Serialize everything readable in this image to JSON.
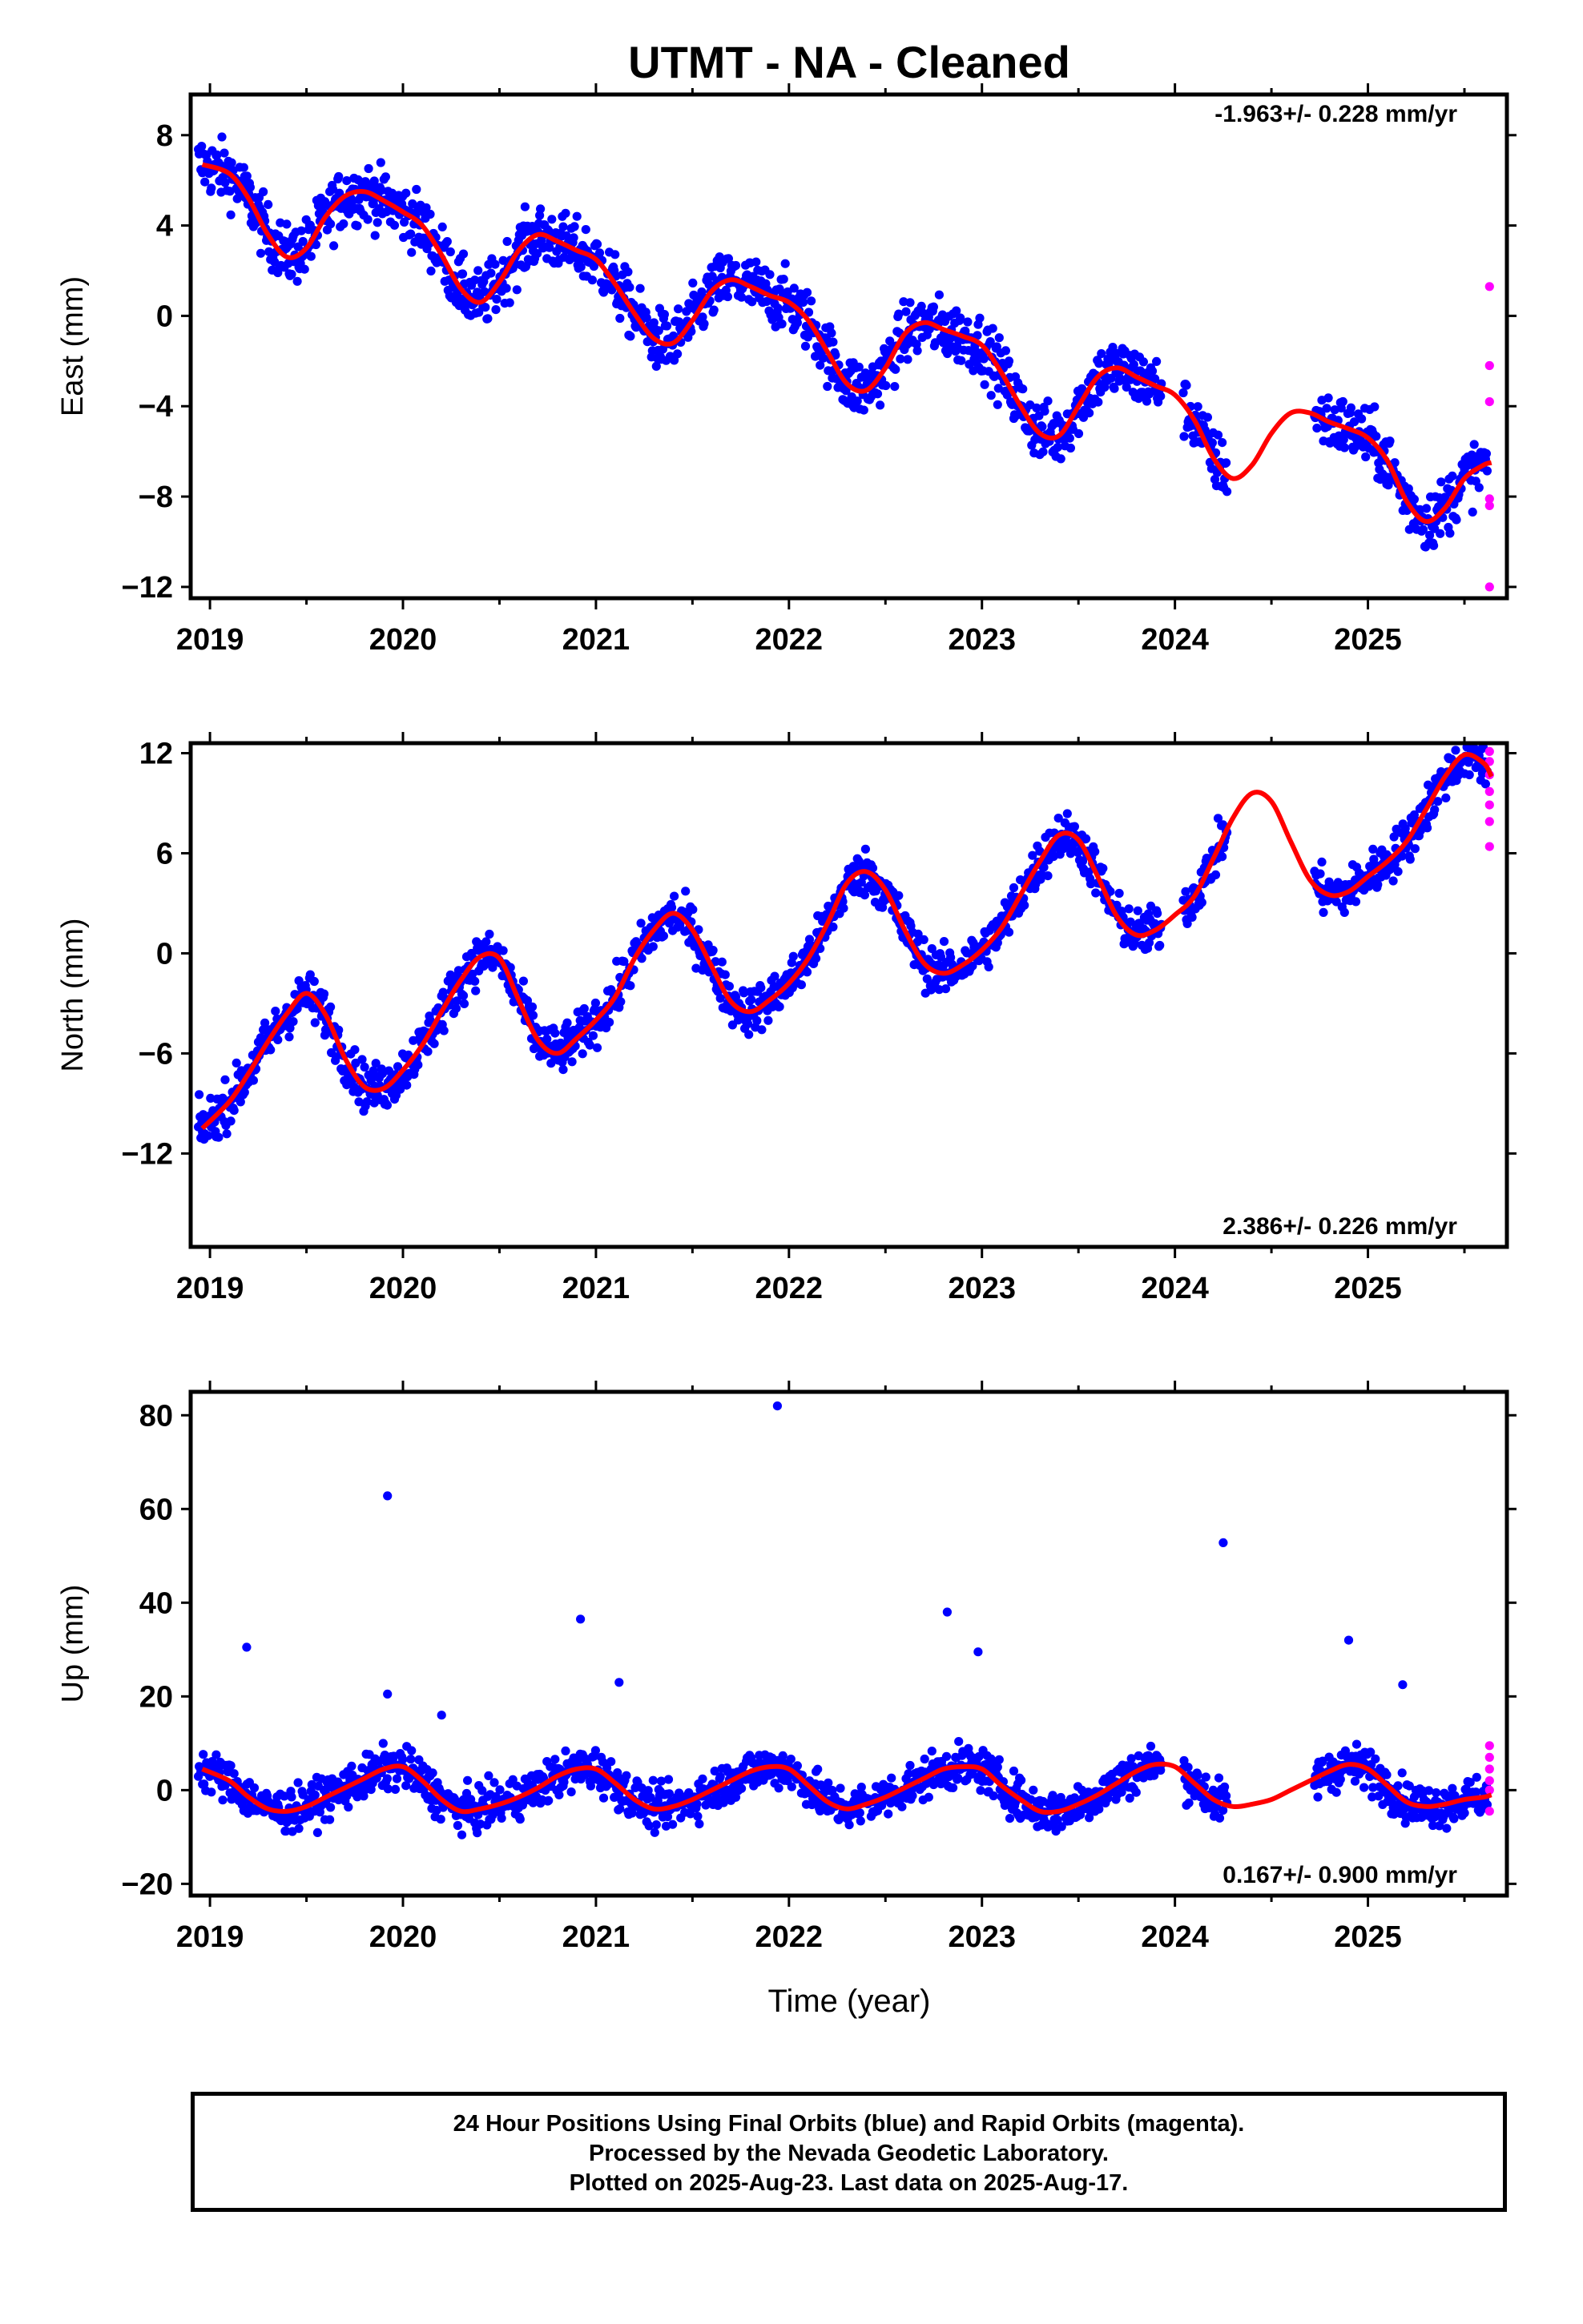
{
  "chart_data": {
    "type": "scatter",
    "title": "UTMT  - NA - Cleaned",
    "xlabel": "Time (year)",
    "x_ticks": [
      "2019",
      "2020",
      "2021",
      "2022",
      "2023",
      "2024",
      "2025"
    ],
    "xlim": [
      2018.9,
      2025.72
    ],
    "colors": {
      "final": "#0000ff",
      "rapid": "#ff00ff",
      "model": "#ff0000"
    },
    "panels": [
      {
        "name": "east",
        "ylabel": "East (mm)",
        "ylim": [
          -12.5,
          9.8
        ],
        "y_ticks": [
          "8",
          "4",
          "0",
          "−4",
          "−8",
          "−12"
        ],
        "y_tick_values": [
          8,
          4,
          0,
          -4,
          -8,
          -12
        ],
        "rate_label": "-1.963+/- 0.228 mm/yr",
        "rate_position": "top-right",
        "model_curve": {
          "x": [
            2018.96,
            2019.1,
            2019.2,
            2019.3,
            2019.4,
            2019.5,
            2019.6,
            2019.7,
            2019.8,
            2019.9,
            2020.0,
            2020.1,
            2020.2,
            2020.3,
            2020.4,
            2020.5,
            2020.6,
            2020.7,
            2020.8,
            2020.9,
            2021.0,
            2021.1,
            2021.2,
            2021.3,
            2021.4,
            2021.5,
            2021.6,
            2021.7,
            2021.8,
            2021.9,
            2022.0,
            2022.1,
            2022.2,
            2022.3,
            2022.4,
            2022.5,
            2022.6,
            2022.7,
            2022.8,
            2022.9,
            2023.0,
            2023.1,
            2023.2,
            2023.3,
            2023.4,
            2023.5,
            2023.6,
            2023.7,
            2023.8,
            2023.9,
            2024.0,
            2024.1,
            2024.2,
            2024.3,
            2024.4,
            2024.5,
            2024.6,
            2024.7,
            2024.8,
            2024.9,
            2025.0,
            2025.1,
            2025.2,
            2025.3,
            2025.4,
            2025.5,
            2025.6,
            2025.64
          ],
          "y": [
            6.7,
            6.3,
            5.2,
            3.6,
            2.6,
            3.0,
            4.4,
            5.3,
            5.5,
            5.1,
            4.6,
            4.0,
            2.7,
            1.2,
            0.6,
            1.5,
            2.9,
            3.6,
            3.3,
            2.9,
            2.5,
            1.4,
            0.1,
            -1.0,
            -1.2,
            -0.2,
            1.1,
            1.6,
            1.3,
            0.9,
            0.6,
            -0.2,
            -1.6,
            -3.0,
            -3.3,
            -2.3,
            -0.8,
            -0.3,
            -0.6,
            -0.9,
            -1.3,
            -2.5,
            -4.0,
            -5.2,
            -5.3,
            -4.0,
            -2.7,
            -2.3,
            -2.7,
            -3.1,
            -3.5,
            -4.6,
            -6.3,
            -7.2,
            -6.6,
            -5.2,
            -4.3,
            -4.3,
            -4.7,
            -5.0,
            -5.4,
            -6.4,
            -8.2,
            -9.1,
            -8.5,
            -7.2,
            -6.6,
            -6.5
          ]
        },
        "rapid_points": {
          "x": [
            2025.63,
            2025.63,
            2025.63,
            2025.63,
            2025.63,
            2025.63
          ],
          "y": [
            1.3,
            -2.2,
            -3.8,
            -8.1,
            -8.4,
            -12.0
          ]
        }
      },
      {
        "name": "north",
        "ylabel": "North (mm)",
        "ylim": [
          -17.6,
          12.6
        ],
        "y_ticks": [
          "12",
          "6",
          "0",
          "−6",
          "−12"
        ],
        "y_tick_values": [
          12,
          6,
          0,
          -6,
          -12
        ],
        "rate_label": "2.386+/- 0.226 mm/yr",
        "rate_position": "bottom-right",
        "model_curve": {
          "x": [
            2018.96,
            2019.1,
            2019.2,
            2019.3,
            2019.4,
            2019.5,
            2019.6,
            2019.7,
            2019.8,
            2019.9,
            2020.0,
            2020.1,
            2020.2,
            2020.3,
            2020.4,
            2020.5,
            2020.6,
            2020.7,
            2020.8,
            2020.9,
            2021.0,
            2021.1,
            2021.2,
            2021.3,
            2021.4,
            2021.5,
            2021.6,
            2021.7,
            2021.8,
            2021.9,
            2022.0,
            2022.1,
            2022.2,
            2022.3,
            2022.4,
            2022.5,
            2022.6,
            2022.7,
            2022.8,
            2022.9,
            2023.0,
            2023.1,
            2023.2,
            2023.3,
            2023.4,
            2023.5,
            2023.6,
            2023.7,
            2023.8,
            2023.9,
            2024.0,
            2024.1,
            2024.2,
            2024.3,
            2024.4,
            2024.5,
            2024.6,
            2024.7,
            2024.8,
            2024.9,
            2025.0,
            2025.1,
            2025.2,
            2025.3,
            2025.4,
            2025.5,
            2025.6,
            2025.64
          ],
          "y": [
            -10.5,
            -8.9,
            -7.2,
            -5.3,
            -3.6,
            -2.4,
            -3.7,
            -6.3,
            -8.0,
            -8.1,
            -7.0,
            -5.5,
            -3.5,
            -1.6,
            -0.2,
            -0.3,
            -2.8,
            -5.2,
            -6.0,
            -5.1,
            -4.0,
            -2.6,
            -0.3,
            1.4,
            2.4,
            1.4,
            -0.8,
            -2.9,
            -3.5,
            -2.8,
            -1.8,
            -0.3,
            1.8,
            4.2,
            4.9,
            3.8,
            1.4,
            -0.6,
            -1.2,
            -0.7,
            0.2,
            1.5,
            3.5,
            5.5,
            7.1,
            6.8,
            4.6,
            2.2,
            1.1,
            1.4,
            2.3,
            3.4,
            5.7,
            8.1,
            9.6,
            9.1,
            6.7,
            4.4,
            3.5,
            3.7,
            4.6,
            5.5,
            6.7,
            8.6,
            10.6,
            11.9,
            11.4,
            10.6
          ]
        },
        "rapid_points": {
          "x": [
            2025.63,
            2025.63,
            2025.63,
            2025.63,
            2025.63,
            2025.63,
            2025.63
          ],
          "y": [
            12.1,
            11.5,
            10.7,
            9.7,
            8.9,
            7.9,
            6.4
          ]
        }
      },
      {
        "name": "up",
        "ylabel": "Up (mm)",
        "ylim": [
          -22.5,
          85
        ],
        "y_ticks": [
          "80",
          "60",
          "40",
          "20",
          "0",
          "−20"
        ],
        "y_tick_values": [
          80,
          60,
          40,
          20,
          0,
          -20
        ],
        "rate_label": "0.167+/- 0.900 mm/yr",
        "rate_position": "bottom-right",
        "model_curve": {
          "x": [
            2018.96,
            2019.1,
            2019.2,
            2019.3,
            2019.4,
            2019.5,
            2019.6,
            2019.7,
            2019.8,
            2019.9,
            2020.0,
            2020.1,
            2020.2,
            2020.3,
            2020.4,
            2020.5,
            2020.6,
            2020.7,
            2020.8,
            2020.9,
            2021.0,
            2021.1,
            2021.2,
            2021.3,
            2021.4,
            2021.5,
            2021.6,
            2021.7,
            2021.8,
            2021.9,
            2022.0,
            2022.1,
            2022.2,
            2022.3,
            2022.4,
            2022.5,
            2022.6,
            2022.7,
            2022.8,
            2022.9,
            2023.0,
            2023.1,
            2023.2,
            2023.3,
            2023.4,
            2023.5,
            2023.6,
            2023.7,
            2023.8,
            2023.9,
            2024.0,
            2024.1,
            2024.2,
            2024.3,
            2024.4,
            2024.5,
            2024.6,
            2024.7,
            2024.8,
            2024.9,
            2025.0,
            2025.1,
            2025.2,
            2025.3,
            2025.4,
            2025.5,
            2025.6,
            2025.64
          ],
          "y": [
            4.5,
            2.0,
            -1.5,
            -4.0,
            -4.5,
            -3.5,
            -1.5,
            0.5,
            2.5,
            4.5,
            5.0,
            2.0,
            -2.0,
            -4.5,
            -4.0,
            -3.0,
            -1.5,
            0.5,
            3.0,
            4.5,
            4.5,
            1.5,
            -2.0,
            -4.0,
            -3.5,
            -2.0,
            0.0,
            2.0,
            4.0,
            5.0,
            4.5,
            1.0,
            -2.5,
            -4.0,
            -3.0,
            -1.5,
            0.5,
            2.5,
            4.5,
            5.0,
            4.5,
            1.0,
            -2.0,
            -4.5,
            -4.5,
            -3.0,
            -1.0,
            1.5,
            4.0,
            5.5,
            5.0,
            1.5,
            -2.0,
            -3.5,
            -3.0,
            -2.0,
            0.0,
            2.0,
            4.0,
            5.5,
            4.5,
            1.0,
            -2.5,
            -3.5,
            -3.0,
            -2.0,
            -1.5,
            -1.0
          ]
        },
        "outliers": {
          "x": [
            2019.19,
            2019.92,
            2020.2,
            2020.92,
            2021.12,
            2021.94,
            2022.82,
            2022.98,
            2024.25,
            2024.9,
            2025.18,
            2019.92
          ],
          "y": [
            30.5,
            62.8,
            16.0,
            36.5,
            23.0,
            82.0,
            38.0,
            29.5,
            52.8,
            32.0,
            22.5,
            20.5
          ]
        },
        "rapid_points": {
          "x": [
            2025.63,
            2025.63,
            2025.63,
            2025.63,
            2025.63,
            2025.63
          ],
          "y": [
            9.5,
            7.0,
            4.5,
            2.0,
            0.0,
            -4.5
          ]
        }
      }
    ],
    "data_gaps": [
      [
        2024.27,
        2024.72
      ]
    ],
    "footer_lines": [
      "24 Hour Positions Using Final Orbits (blue) and Rapid Orbits (magenta).",
      "Processed by the Nevada Geodetic Laboratory.",
      "Plotted on 2025-Aug-23. Last data on 2025-Aug-17."
    ]
  }
}
